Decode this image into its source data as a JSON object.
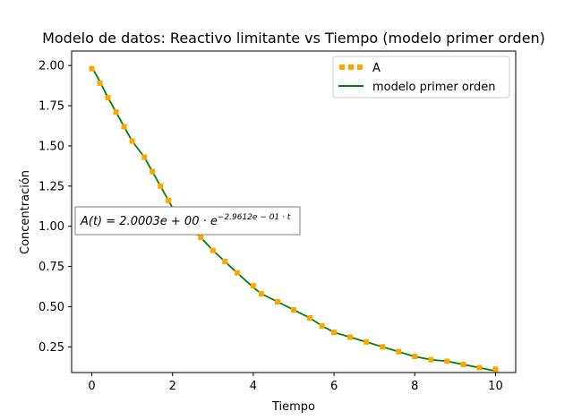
{
  "chart_data": {
    "type": "line",
    "title": "Modelo de datos: Reactivo limitante vs Tiempo (modelo primer orden)",
    "xlabel": "Tiempo",
    "ylabel": "Concentración",
    "xlim": [
      -0.5,
      10.5
    ],
    "ylim": [
      0.09,
      2.09
    ],
    "x_ticks": [
      0,
      2,
      4,
      6,
      8,
      10
    ],
    "x_tick_labels": [
      "0",
      "2",
      "4",
      "6",
      "8",
      "10"
    ],
    "y_ticks": [
      0.25,
      0.5,
      0.75,
      1.0,
      1.25,
      1.5,
      1.75,
      2.0
    ],
    "y_tick_labels": [
      "0.25",
      "0.50",
      "0.75",
      "1.00",
      "1.25",
      "1.50",
      "1.75",
      "2.00"
    ],
    "grid": false,
    "legend_position": "top-right",
    "series": [
      {
        "name": "A",
        "style": "markers",
        "color": "#ffa500",
        "x": [
          0,
          0.2,
          0.4,
          0.6,
          0.8,
          1.0,
          1.3,
          1.5,
          1.7,
          1.9,
          2.1,
          2.7,
          3.0,
          3.3,
          3.6,
          4.0,
          4.2,
          4.6,
          5.0,
          5.4,
          5.7,
          6.0,
          6.4,
          6.8,
          7.2,
          7.6,
          8.0,
          8.4,
          8.8,
          9.2,
          9.6,
          10.0
        ],
        "y": [
          1.98,
          1.89,
          1.8,
          1.71,
          1.62,
          1.53,
          1.43,
          1.34,
          1.25,
          1.16,
          1.07,
          0.93,
          0.85,
          0.78,
          0.71,
          0.63,
          0.58,
          0.53,
          0.48,
          0.43,
          0.38,
          0.34,
          0.31,
          0.28,
          0.25,
          0.22,
          0.19,
          0.17,
          0.16,
          0.14,
          0.12,
          0.11
        ]
      },
      {
        "name": "modelo primer orden",
        "style": "line",
        "color": "#008000",
        "x": [
          0,
          0.2,
          0.4,
          0.6,
          0.8,
          1.0,
          1.3,
          1.5,
          1.7,
          1.9,
          2.1,
          2.7,
          3.0,
          3.3,
          3.6,
          4.0,
          4.2,
          4.6,
          5.0,
          5.4,
          5.7,
          6.0,
          6.4,
          6.8,
          7.2,
          7.6,
          8.0,
          8.4,
          8.8,
          9.2,
          9.6,
          10.0
        ],
        "y": [
          1.99,
          1.9,
          1.8,
          1.71,
          1.62,
          1.53,
          1.43,
          1.34,
          1.25,
          1.16,
          1.07,
          0.93,
          0.85,
          0.78,
          0.71,
          0.62,
          0.58,
          0.53,
          0.48,
          0.43,
          0.38,
          0.34,
          0.31,
          0.28,
          0.25,
          0.22,
          0.19,
          0.17,
          0.16,
          0.14,
          0.12,
          0.1
        ]
      }
    ],
    "annotation": {
      "text_main": "A(t) = 2.0003e + 00 · e",
      "text_exp": "−2.9612e − 01 · t",
      "x": -0.4,
      "y": 1.0
    }
  }
}
